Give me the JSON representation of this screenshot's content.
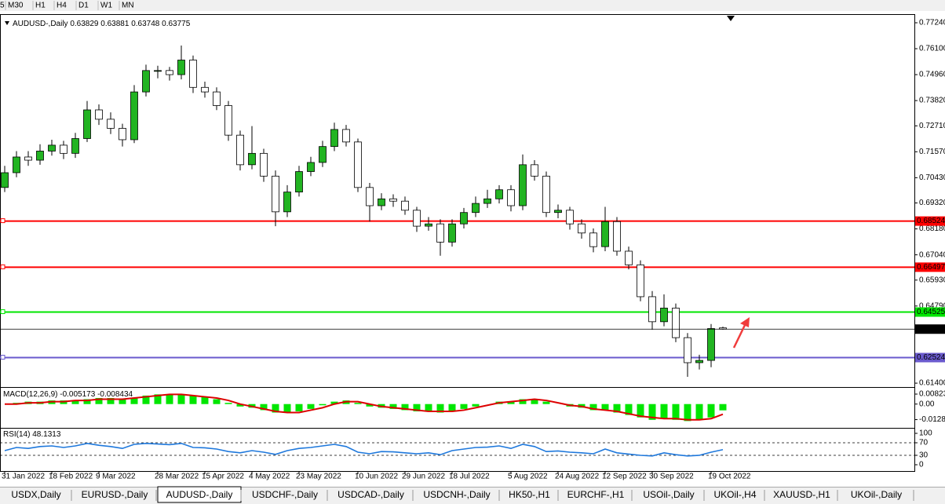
{
  "toolbar": [
    "5",
    "M30",
    "H1",
    "H4",
    "D1",
    "W1",
    "MN"
  ],
  "tabs": [
    "USDX,Daily",
    "EURUSD-,Daily",
    "AUDUSD-,Daily",
    "USDCHF-,Daily",
    "USDCAD-,Daily",
    "USDCNH-,Daily",
    "HK50-,H1",
    "EURCHF-,H1",
    "USOil-,Daily",
    "UKOil-,H4",
    "XAUUSD-,H1",
    "UKOil-,Daily"
  ],
  "active_tab": 2,
  "chart_data": [
    {
      "type": "candlestick",
      "title": "AUDUSD-,Daily",
      "categories": [
        "31 Jan 2022",
        null,
        null,
        null,
        "18 Feb 2022",
        null,
        null,
        null,
        "9 Mar 2022",
        null,
        null,
        null,
        null,
        "28 Mar 2022",
        null,
        null,
        null,
        "15 Apr 2022",
        null,
        null,
        null,
        "4 May 2022",
        null,
        null,
        null,
        "23 May 2022",
        null,
        null,
        null,
        null,
        "10 Jun 2022",
        null,
        null,
        null,
        "29 Jun 2022",
        null,
        null,
        null,
        "18 Jul 2022",
        null,
        null,
        null,
        null,
        "5 Aug 2022",
        null,
        null,
        null,
        "24 Aug 2022",
        null,
        null,
        null,
        "12 Sep 2022",
        null,
        null,
        null,
        "30 Sep 2022",
        null,
        null,
        null,
        null,
        "19 Oct 2022",
        null
      ],
      "open": [
        0.7,
        0.7065,
        0.7134,
        0.712,
        0.716,
        0.7186,
        0.715,
        0.7215,
        0.7341,
        0.73,
        0.726,
        0.721,
        0.742,
        0.7514,
        0.7514,
        0.7496,
        0.756,
        0.744,
        0.742,
        0.736,
        0.723,
        0.71,
        0.715,
        0.705,
        0.6893,
        0.698,
        0.707,
        0.711,
        0.718,
        0.7255,
        0.72,
        0.7,
        0.692,
        0.695,
        0.694,
        0.69,
        0.683,
        0.684,
        0.676,
        0.684,
        0.689,
        0.693,
        0.695,
        0.699,
        0.692,
        0.71,
        0.705,
        0.689,
        0.69,
        0.684,
        0.68,
        0.674,
        0.685,
        0.672,
        0.666,
        0.652,
        0.641,
        0.647,
        0.634,
        0.623,
        0.624,
        0.63829
      ],
      "high": [
        0.7095,
        0.716,
        0.716,
        0.719,
        0.721,
        0.7205,
        0.724,
        0.738,
        0.7365,
        0.733,
        0.728,
        0.745,
        0.754,
        0.7535,
        0.753,
        0.7624,
        0.758,
        0.7465,
        0.744,
        0.738,
        0.725,
        0.727,
        0.717,
        0.7075,
        0.701,
        0.7095,
        0.7135,
        0.7205,
        0.7285,
        0.7275,
        0.7215,
        0.702,
        0.6975,
        0.697,
        0.696,
        0.6915,
        0.687,
        0.686,
        0.686,
        0.691,
        0.696,
        0.699,
        0.701,
        0.701,
        0.7145,
        0.712,
        0.707,
        0.6925,
        0.6915,
        0.686,
        0.682,
        0.6915,
        0.687,
        0.674,
        0.668,
        0.6545,
        0.653,
        0.649,
        0.636,
        0.6265,
        0.64,
        0.63881
      ],
      "low": [
        0.698,
        0.7045,
        0.7095,
        0.71,
        0.714,
        0.7125,
        0.713,
        0.72,
        0.7275,
        0.7235,
        0.718,
        0.7195,
        0.74,
        0.748,
        0.747,
        0.7475,
        0.7415,
        0.7395,
        0.734,
        0.7205,
        0.7075,
        0.708,
        0.7025,
        0.683,
        0.687,
        0.696,
        0.705,
        0.709,
        0.716,
        0.718,
        0.698,
        0.685,
        0.69,
        0.6915,
        0.688,
        0.6805,
        0.681,
        0.67,
        0.674,
        0.682,
        0.687,
        0.691,
        0.693,
        0.6895,
        0.69,
        0.703,
        0.687,
        0.6865,
        0.6815,
        0.6775,
        0.6715,
        0.672,
        0.67,
        0.664,
        0.65,
        0.6375,
        0.639,
        0.632,
        0.6168,
        0.62,
        0.621,
        0.63748
      ],
      "close": [
        0.7065,
        0.7134,
        0.712,
        0.716,
        0.7186,
        0.715,
        0.7215,
        0.7341,
        0.73,
        0.726,
        0.721,
        0.742,
        0.7514,
        0.7514,
        0.7496,
        0.756,
        0.744,
        0.742,
        0.736,
        0.723,
        0.71,
        0.715,
        0.705,
        0.6893,
        0.698,
        0.707,
        0.711,
        0.718,
        0.7255,
        0.72,
        0.7,
        0.692,
        0.695,
        0.694,
        0.69,
        0.683,
        0.684,
        0.676,
        0.684,
        0.689,
        0.693,
        0.695,
        0.699,
        0.692,
        0.71,
        0.705,
        0.689,
        0.69,
        0.684,
        0.68,
        0.674,
        0.685,
        0.672,
        0.666,
        0.652,
        0.641,
        0.647,
        0.634,
        0.623,
        0.624,
        0.638,
        0.63775
      ],
      "up_color": "#22b422",
      "down_color": "#ffffff",
      "outline_color": "#000000",
      "ylim": [
        0.6123,
        0.7755
      ],
      "yticks": [
        {
          "value": 0.7724,
          "label": "0.77240"
        },
        {
          "value": 0.761,
          "label": "0.76100"
        },
        {
          "value": 0.7496,
          "label": "0.74960"
        },
        {
          "value": 0.7382,
          "label": "0.73820"
        },
        {
          "value": 0.7271,
          "label": "0.72710"
        },
        {
          "value": 0.7157,
          "label": "0.71570"
        },
        {
          "value": 0.7043,
          "label": "0.70430"
        },
        {
          "value": 0.6932,
          "label": "0.69320"
        },
        {
          "value": 0.6818,
          "label": "0.68180"
        },
        {
          "value": 0.6704,
          "label": "0.67040"
        },
        {
          "value": 0.6593,
          "label": "0.65930"
        },
        {
          "value": 0.6479,
          "label": "0.64790"
        },
        {
          "value": 0.614,
          "label": "0.61400"
        }
      ],
      "levels": [
        {
          "value": 0.68524,
          "color": "#ff0000"
        },
        {
          "value": 0.66497,
          "color": "#ff0000"
        },
        {
          "value": 0.64525,
          "color": "#00e600"
        },
        {
          "value": 0.62524,
          "color": "#6a5acd"
        }
      ],
      "current_price_color": "#000000"
    },
    {
      "type": "macd",
      "title": "MACD(12,26,9)",
      "values": [
        0.0,
        0.001,
        0.002,
        0.002,
        0.003,
        0.003,
        0.003,
        0.004,
        0.005,
        0.005,
        0.004,
        0.005,
        0.007,
        0.008,
        0.008,
        0.008,
        0.007,
        0.006,
        0.004,
        0.001,
        -0.002,
        -0.003,
        -0.005,
        -0.007,
        -0.007,
        -0.006,
        -0.004,
        -0.001,
        0.002,
        0.003,
        0.001,
        -0.002,
        -0.003,
        -0.004,
        -0.005,
        -0.006,
        -0.006,
        -0.007,
        -0.006,
        -0.004,
        -0.002,
        0.0,
        0.002,
        0.002,
        0.004,
        0.004,
        0.002,
        0.0,
        -0.002,
        -0.003,
        -0.005,
        -0.005,
        -0.007,
        -0.009,
        -0.011,
        -0.013,
        -0.012,
        -0.013,
        -0.014,
        -0.013,
        -0.011,
        -0.005173
      ],
      "color": "#00e600",
      "signal": [
        0.0,
        0.0,
        0.001,
        0.001,
        0.002,
        0.002,
        0.003,
        0.003,
        0.004,
        0.004,
        0.004,
        0.005,
        0.006,
        0.007,
        0.008,
        0.008,
        0.007,
        0.006,
        0.005,
        0.003,
        0.0,
        -0.002,
        -0.004,
        -0.006,
        -0.007,
        -0.007,
        -0.005,
        -0.003,
        0.0,
        0.002,
        0.002,
        0.0,
        -0.002,
        -0.003,
        -0.004,
        -0.005,
        -0.006,
        -0.006,
        -0.006,
        -0.005,
        -0.003,
        -0.001,
        0.001,
        0.002,
        0.003,
        0.004,
        0.003,
        0.001,
        -0.001,
        -0.002,
        -0.004,
        -0.005,
        -0.006,
        -0.008,
        -0.01,
        -0.011,
        -0.012,
        -0.012,
        -0.013,
        -0.013,
        -0.012,
        -0.008434
      ],
      "signal_color": "#dd0000",
      "ylim": [
        -0.0196,
        0.0134
      ],
      "yticks": [
        0.00823,
        {
          "value": 0,
          "label": "0.00"
        },
        -0.01282
      ]
    },
    {
      "type": "line",
      "title": "RSI(14)",
      "values": [
        45,
        55,
        52,
        58,
        60,
        55,
        60,
        68,
        62,
        58,
        52,
        65,
        68,
        66,
        64,
        68,
        55,
        54,
        50,
        42,
        38,
        45,
        40,
        33,
        45,
        52,
        55,
        60,
        65,
        58,
        40,
        35,
        42,
        41,
        38,
        35,
        38,
        32,
        45,
        50,
        55,
        56,
        60,
        52,
        65,
        58,
        42,
        44,
        40,
        38,
        35,
        50,
        38,
        34,
        30,
        28,
        38,
        32,
        28,
        30,
        40,
        48.1313
      ],
      "color": "#1e78dc",
      "ylim": [
        -20,
        117.5
      ],
      "yticks": [
        100,
        70,
        30,
        0
      ],
      "levels": [
        70,
        30
      ]
    }
  ]
}
